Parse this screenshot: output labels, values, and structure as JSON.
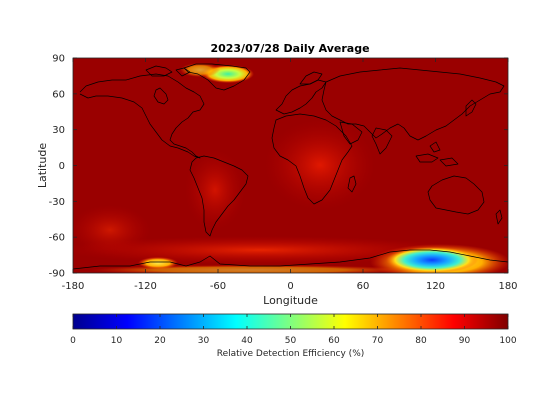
{
  "chart_data": {
    "type": "heatmap",
    "title": "2023/07/28 Daily Average",
    "xlabel": "Longitude",
    "ylabel": "Latitude",
    "xlim": [
      -180,
      180
    ],
    "ylim": [
      -90,
      90
    ],
    "xticks": [
      "-180",
      "-120",
      "-60",
      "0",
      "60",
      "120",
      "180"
    ],
    "yticks": [
      "90",
      "60",
      "30",
      "0",
      "-30",
      "-60",
      "-90"
    ],
    "colorbar": {
      "label": "Relative Detection Efficiency (%)",
      "range": [
        0,
        100
      ],
      "ticks": [
        "0",
        "10",
        "20",
        "30",
        "40",
        "50",
        "60",
        "70",
        "80",
        "90",
        "100"
      ],
      "colormap": "jet"
    },
    "background_value": 97,
    "regions": [
      {
        "lon": 120,
        "lat": -76,
        "value": 25
      },
      {
        "lon": 100,
        "lat": -75,
        "value": 70
      },
      {
        "lon": 150,
        "lat": -75,
        "value": 65
      },
      {
        "lon": -120,
        "lat": -80,
        "value": 65
      },
      {
        "lon": -42,
        "lat": 74,
        "value": 50
      },
      {
        "lon": -55,
        "lat": 75,
        "value": 75
      },
      {
        "lon": 10,
        "lat": 0,
        "value": 90
      },
      {
        "lon": -60,
        "lat": -15,
        "value": 92
      },
      {
        "lon": 0,
        "lat": -60,
        "value": 88
      }
    ]
  }
}
